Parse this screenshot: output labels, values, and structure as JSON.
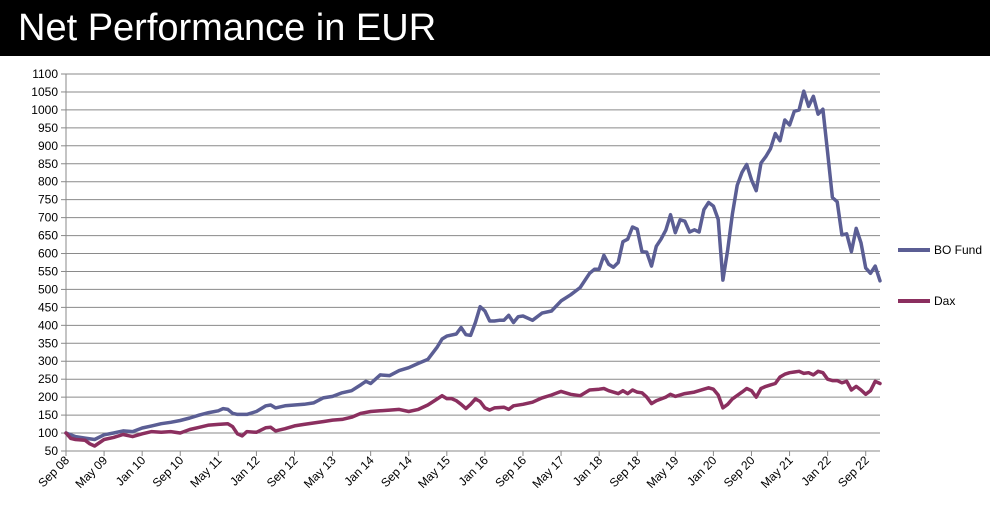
{
  "header": {
    "title": "Net Performance in EUR"
  },
  "chart_data": {
    "type": "line",
    "title": "Net Performance in EUR",
    "xlabel": "",
    "ylabel": "",
    "ylim": [
      50,
      1100
    ],
    "ytick_step": 50,
    "grid": true,
    "legend_position": "right",
    "x_tick_labels": [
      "Sep 08",
      "May 09",
      "Jan 10",
      "Sep 10",
      "May 11",
      "Jan 12",
      "Sep 12",
      "May 13",
      "Jan 14",
      "Sep 14",
      "May 15",
      "Jan 16",
      "Sep 16",
      "May 17",
      "Jan 18",
      "Sep 18",
      "May 19",
      "Jan 20",
      "Sep 20",
      "May 21",
      "Jan 22",
      "Sep 22"
    ],
    "x_tick_month_index": [
      0,
      8,
      16,
      24,
      32,
      40,
      48,
      56,
      64,
      72,
      80,
      88,
      96,
      104,
      112,
      120,
      128,
      136,
      144,
      152,
      160,
      168
    ],
    "x_range_months": [
      0,
      171
    ],
    "series": [
      {
        "name": "BO Fund",
        "color": "#5b5e94",
        "points": [
          [
            0,
            100
          ],
          [
            2,
            90
          ],
          [
            4,
            86
          ],
          [
            6,
            82
          ],
          [
            8,
            95
          ],
          [
            10,
            100
          ],
          [
            12,
            106
          ],
          [
            14,
            104
          ],
          [
            16,
            114
          ],
          [
            18,
            120
          ],
          [
            20,
            126
          ],
          [
            22,
            130
          ],
          [
            24,
            135
          ],
          [
            26,
            142
          ],
          [
            28,
            150
          ],
          [
            30,
            157
          ],
          [
            32,
            162
          ],
          [
            33,
            168
          ],
          [
            34,
            166
          ],
          [
            35,
            155
          ],
          [
            36,
            152
          ],
          [
            38,
            152
          ],
          [
            40,
            160
          ],
          [
            42,
            176
          ],
          [
            43,
            178
          ],
          [
            44,
            170
          ],
          [
            46,
            176
          ],
          [
            48,
            178
          ],
          [
            50,
            180
          ],
          [
            52,
            184
          ],
          [
            54,
            198
          ],
          [
            56,
            202
          ],
          [
            58,
            212
          ],
          [
            60,
            218
          ],
          [
            62,
            235
          ],
          [
            63,
            244
          ],
          [
            64,
            238
          ],
          [
            66,
            262
          ],
          [
            68,
            260
          ],
          [
            70,
            274
          ],
          [
            72,
            282
          ],
          [
            74,
            294
          ],
          [
            76,
            305
          ],
          [
            78,
            340
          ],
          [
            79,
            362
          ],
          [
            80,
            370
          ],
          [
            82,
            376
          ],
          [
            83,
            394
          ],
          [
            84,
            374
          ],
          [
            85,
            372
          ],
          [
            86,
            408
          ],
          [
            87,
            452
          ],
          [
            88,
            440
          ],
          [
            89,
            412
          ],
          [
            90,
            412
          ],
          [
            91,
            414
          ],
          [
            92,
            414
          ],
          [
            93,
            428
          ],
          [
            94,
            408
          ],
          [
            95,
            424
          ],
          [
            96,
            426
          ],
          [
            98,
            414
          ],
          [
            100,
            434
          ],
          [
            102,
            440
          ],
          [
            104,
            468
          ],
          [
            106,
            485
          ],
          [
            108,
            505
          ],
          [
            110,
            545
          ],
          [
            111,
            556
          ],
          [
            112,
            556
          ],
          [
            113,
            595
          ],
          [
            114,
            570
          ],
          [
            115,
            562
          ],
          [
            116,
            575
          ],
          [
            117,
            633
          ],
          [
            118,
            640
          ],
          [
            119,
            674
          ],
          [
            120,
            668
          ],
          [
            121,
            605
          ],
          [
            122,
            604
          ],
          [
            123,
            565
          ],
          [
            124,
            620
          ],
          [
            125,
            640
          ],
          [
            126,
            665
          ],
          [
            127,
            708
          ],
          [
            128,
            658
          ],
          [
            129,
            694
          ],
          [
            130,
            690
          ],
          [
            131,
            660
          ],
          [
            132,
            666
          ],
          [
            133,
            660
          ],
          [
            134,
            722
          ],
          [
            135,
            742
          ],
          [
            136,
            732
          ],
          [
            137,
            695
          ],
          [
            138,
            526
          ],
          [
            139,
            610
          ],
          [
            140,
            710
          ],
          [
            141,
            790
          ],
          [
            142,
            826
          ],
          [
            143,
            848
          ],
          [
            144,
            805
          ],
          [
            145,
            775
          ],
          [
            146,
            852
          ],
          [
            147,
            870
          ],
          [
            148,
            892
          ],
          [
            149,
            934
          ],
          [
            150,
            914
          ],
          [
            151,
            972
          ],
          [
            152,
            958
          ],
          [
            153,
            996
          ],
          [
            154,
            1000
          ],
          [
            155,
            1052
          ],
          [
            156,
            1010
          ],
          [
            157,
            1038
          ],
          [
            158,
            988
          ],
          [
            159,
            1002
          ],
          [
            160,
            882
          ],
          [
            161,
            756
          ],
          [
            162,
            744
          ],
          [
            163,
            652
          ],
          [
            164,
            655
          ],
          [
            165,
            605
          ],
          [
            166,
            670
          ],
          [
            167,
            630
          ],
          [
            168,
            560
          ],
          [
            169,
            545
          ],
          [
            170,
            565
          ],
          [
            171,
            524
          ]
        ]
      },
      {
        "name": "Dax",
        "color": "#8b2f5f",
        "points": [
          [
            0,
            100
          ],
          [
            1,
            85
          ],
          [
            2,
            82
          ],
          [
            4,
            80
          ],
          [
            5,
            70
          ],
          [
            6,
            64
          ],
          [
            8,
            82
          ],
          [
            10,
            88
          ],
          [
            12,
            96
          ],
          [
            14,
            90
          ],
          [
            16,
            98
          ],
          [
            18,
            104
          ],
          [
            20,
            102
          ],
          [
            22,
            104
          ],
          [
            24,
            100
          ],
          [
            26,
            110
          ],
          [
            28,
            116
          ],
          [
            30,
            122
          ],
          [
            32,
            124
          ],
          [
            34,
            126
          ],
          [
            35,
            118
          ],
          [
            36,
            98
          ],
          [
            37,
            92
          ],
          [
            38,
            104
          ],
          [
            40,
            102
          ],
          [
            42,
            115
          ],
          [
            43,
            116
          ],
          [
            44,
            106
          ],
          [
            46,
            112
          ],
          [
            48,
            120
          ],
          [
            50,
            124
          ],
          [
            52,
            128
          ],
          [
            54,
            132
          ],
          [
            56,
            136
          ],
          [
            58,
            138
          ],
          [
            60,
            144
          ],
          [
            62,
            155
          ],
          [
            64,
            160
          ],
          [
            66,
            162
          ],
          [
            68,
            164
          ],
          [
            70,
            166
          ],
          [
            72,
            160
          ],
          [
            74,
            166
          ],
          [
            76,
            178
          ],
          [
            78,
            195
          ],
          [
            79,
            204
          ],
          [
            80,
            196
          ],
          [
            81,
            196
          ],
          [
            82,
            190
          ],
          [
            83,
            180
          ],
          [
            84,
            168
          ],
          [
            85,
            180
          ],
          [
            86,
            195
          ],
          [
            87,
            188
          ],
          [
            88,
            170
          ],
          [
            89,
            164
          ],
          [
            90,
            170
          ],
          [
            92,
            172
          ],
          [
            93,
            166
          ],
          [
            94,
            176
          ],
          [
            96,
            180
          ],
          [
            98,
            186
          ],
          [
            100,
            198
          ],
          [
            102,
            206
          ],
          [
            104,
            216
          ],
          [
            106,
            208
          ],
          [
            108,
            204
          ],
          [
            110,
            220
          ],
          [
            112,
            222
          ],
          [
            113,
            224
          ],
          [
            114,
            218
          ],
          [
            116,
            210
          ],
          [
            117,
            218
          ],
          [
            118,
            210
          ],
          [
            119,
            220
          ],
          [
            120,
            214
          ],
          [
            121,
            212
          ],
          [
            122,
            200
          ],
          [
            123,
            182
          ],
          [
            124,
            190
          ],
          [
            126,
            200
          ],
          [
            127,
            208
          ],
          [
            128,
            202
          ],
          [
            130,
            210
          ],
          [
            132,
            214
          ],
          [
            134,
            222
          ],
          [
            135,
            226
          ],
          [
            136,
            222
          ],
          [
            137,
            206
          ],
          [
            138,
            170
          ],
          [
            139,
            180
          ],
          [
            140,
            195
          ],
          [
            142,
            214
          ],
          [
            143,
            224
          ],
          [
            144,
            218
          ],
          [
            145,
            200
          ],
          [
            146,
            224
          ],
          [
            147,
            230
          ],
          [
            148,
            234
          ],
          [
            149,
            238
          ],
          [
            150,
            256
          ],
          [
            151,
            264
          ],
          [
            152,
            268
          ],
          [
            153,
            270
          ],
          [
            154,
            272
          ],
          [
            155,
            266
          ],
          [
            156,
            268
          ],
          [
            157,
            262
          ],
          [
            158,
            272
          ],
          [
            159,
            268
          ],
          [
            160,
            250
          ],
          [
            161,
            246
          ],
          [
            162,
            246
          ],
          [
            163,
            240
          ],
          [
            164,
            244
          ],
          [
            165,
            220
          ],
          [
            166,
            230
          ],
          [
            167,
            220
          ],
          [
            168,
            208
          ],
          [
            169,
            218
          ],
          [
            170,
            244
          ],
          [
            171,
            238
          ]
        ]
      }
    ]
  }
}
